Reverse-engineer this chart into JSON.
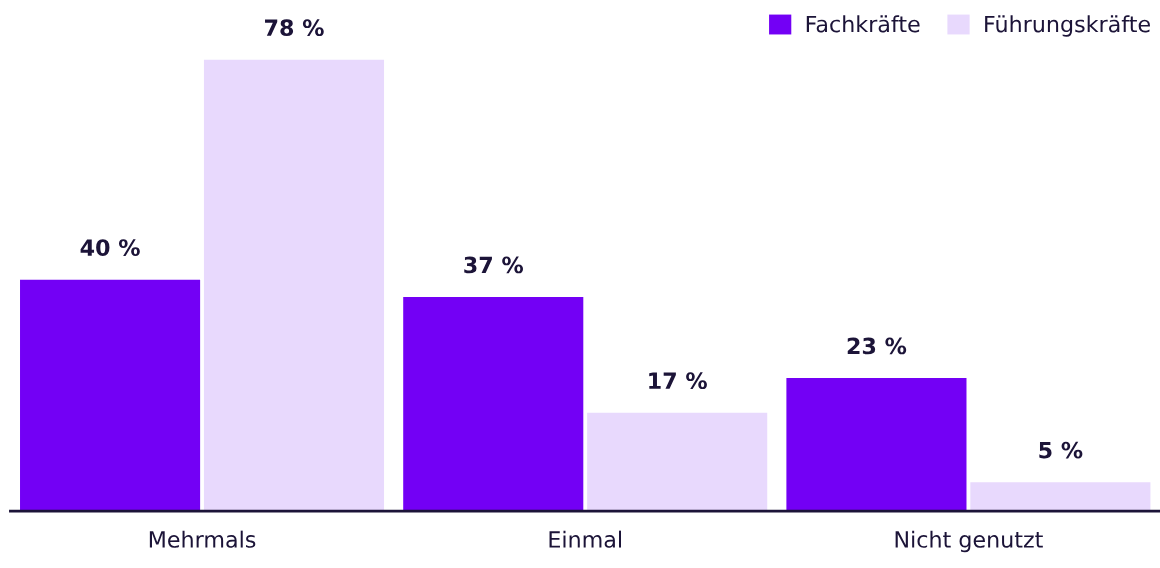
{
  "chart_data": {
    "type": "bar",
    "categories": [
      "Mehrmals",
      "Einmal",
      "Nicht genutzt"
    ],
    "series": [
      {
        "name": "Fachkräfte",
        "color": "#7300f5",
        "values": [
          40,
          37,
          23
        ],
        "value_labels": [
          "40 %",
          "37 %",
          "23 %"
        ]
      },
      {
        "name": "Führungskräfte",
        "color": "#e8d9fd",
        "values": [
          78,
          17,
          5
        ],
        "value_labels": [
          "78 %",
          "17 %",
          "5 %"
        ]
      }
    ],
    "legend": "top right",
    "tick_labels": "x"
  }
}
